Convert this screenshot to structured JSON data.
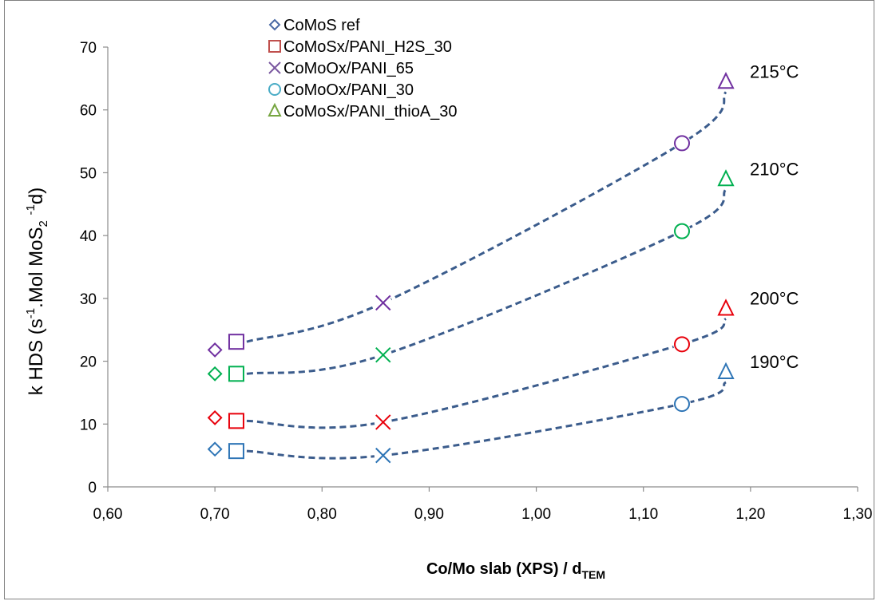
{
  "chart_data": {
    "type": "scatter",
    "ylabel": {
      "main": "k HDS (s",
      "sup1": "-1",
      "mid1": ".Mol MoS",
      "sub": "2",
      "mid2": " ",
      "sup2": "-1",
      "end": "d)"
    },
    "xlabel": {
      "main": "Co/Mo slab (XPS) / d",
      "sub": "TEM"
    },
    "x_ticks": [
      "0,60",
      "0,70",
      "0,80",
      "0,90",
      "1,00",
      "1,10",
      "1,20",
      "1,30"
    ],
    "y_ticks": [
      "0",
      "10",
      "20",
      "30",
      "40",
      "50",
      "60",
      "70"
    ],
    "xlim": [
      0.6,
      1.3
    ],
    "ylim": [
      0,
      70
    ],
    "grid": false,
    "legend_position": "top-left",
    "series": [
      {
        "name": "CoMoS ref",
        "marker": "diamond",
        "legend_color": "#4a6aa5",
        "x": 0.7
      },
      {
        "name": "CoMoSx/PANI_H2S_30",
        "marker": "square",
        "legend_color": "#c0504d",
        "x": 0.72
      },
      {
        "name": "CoMoOx/PANI_65",
        "marker": "x",
        "legend_color": "#7a58a0",
        "x": 0.857
      },
      {
        "name": "CoMoOx/PANI_30",
        "marker": "circle",
        "legend_color": "#4aacc6",
        "x": 1.136
      },
      {
        "name": "CoMoSx/PANI_thioA_30",
        "marker": "triangle",
        "legend_color": "#77a642",
        "x": 1.177
      }
    ],
    "temperatures": [
      {
        "label": "190°C",
        "color": "#2e75b6",
        "values": [
          6.0,
          5.7,
          5.0,
          13.2,
          18.3
        ]
      },
      {
        "label": "200°C",
        "color": "#e8000b",
        "values": [
          11.0,
          10.5,
          10.3,
          22.7,
          28.4
        ]
      },
      {
        "label": "210°C",
        "color": "#00b050",
        "values": [
          18.0,
          18.0,
          21.0,
          40.7,
          49.0
        ]
      },
      {
        "label": "215°C",
        "color": "#7030a0",
        "values": [
          21.8,
          23.1,
          29.3,
          54.7,
          64.5
        ]
      }
    ],
    "trend_line_color": "#3b5c8c"
  }
}
